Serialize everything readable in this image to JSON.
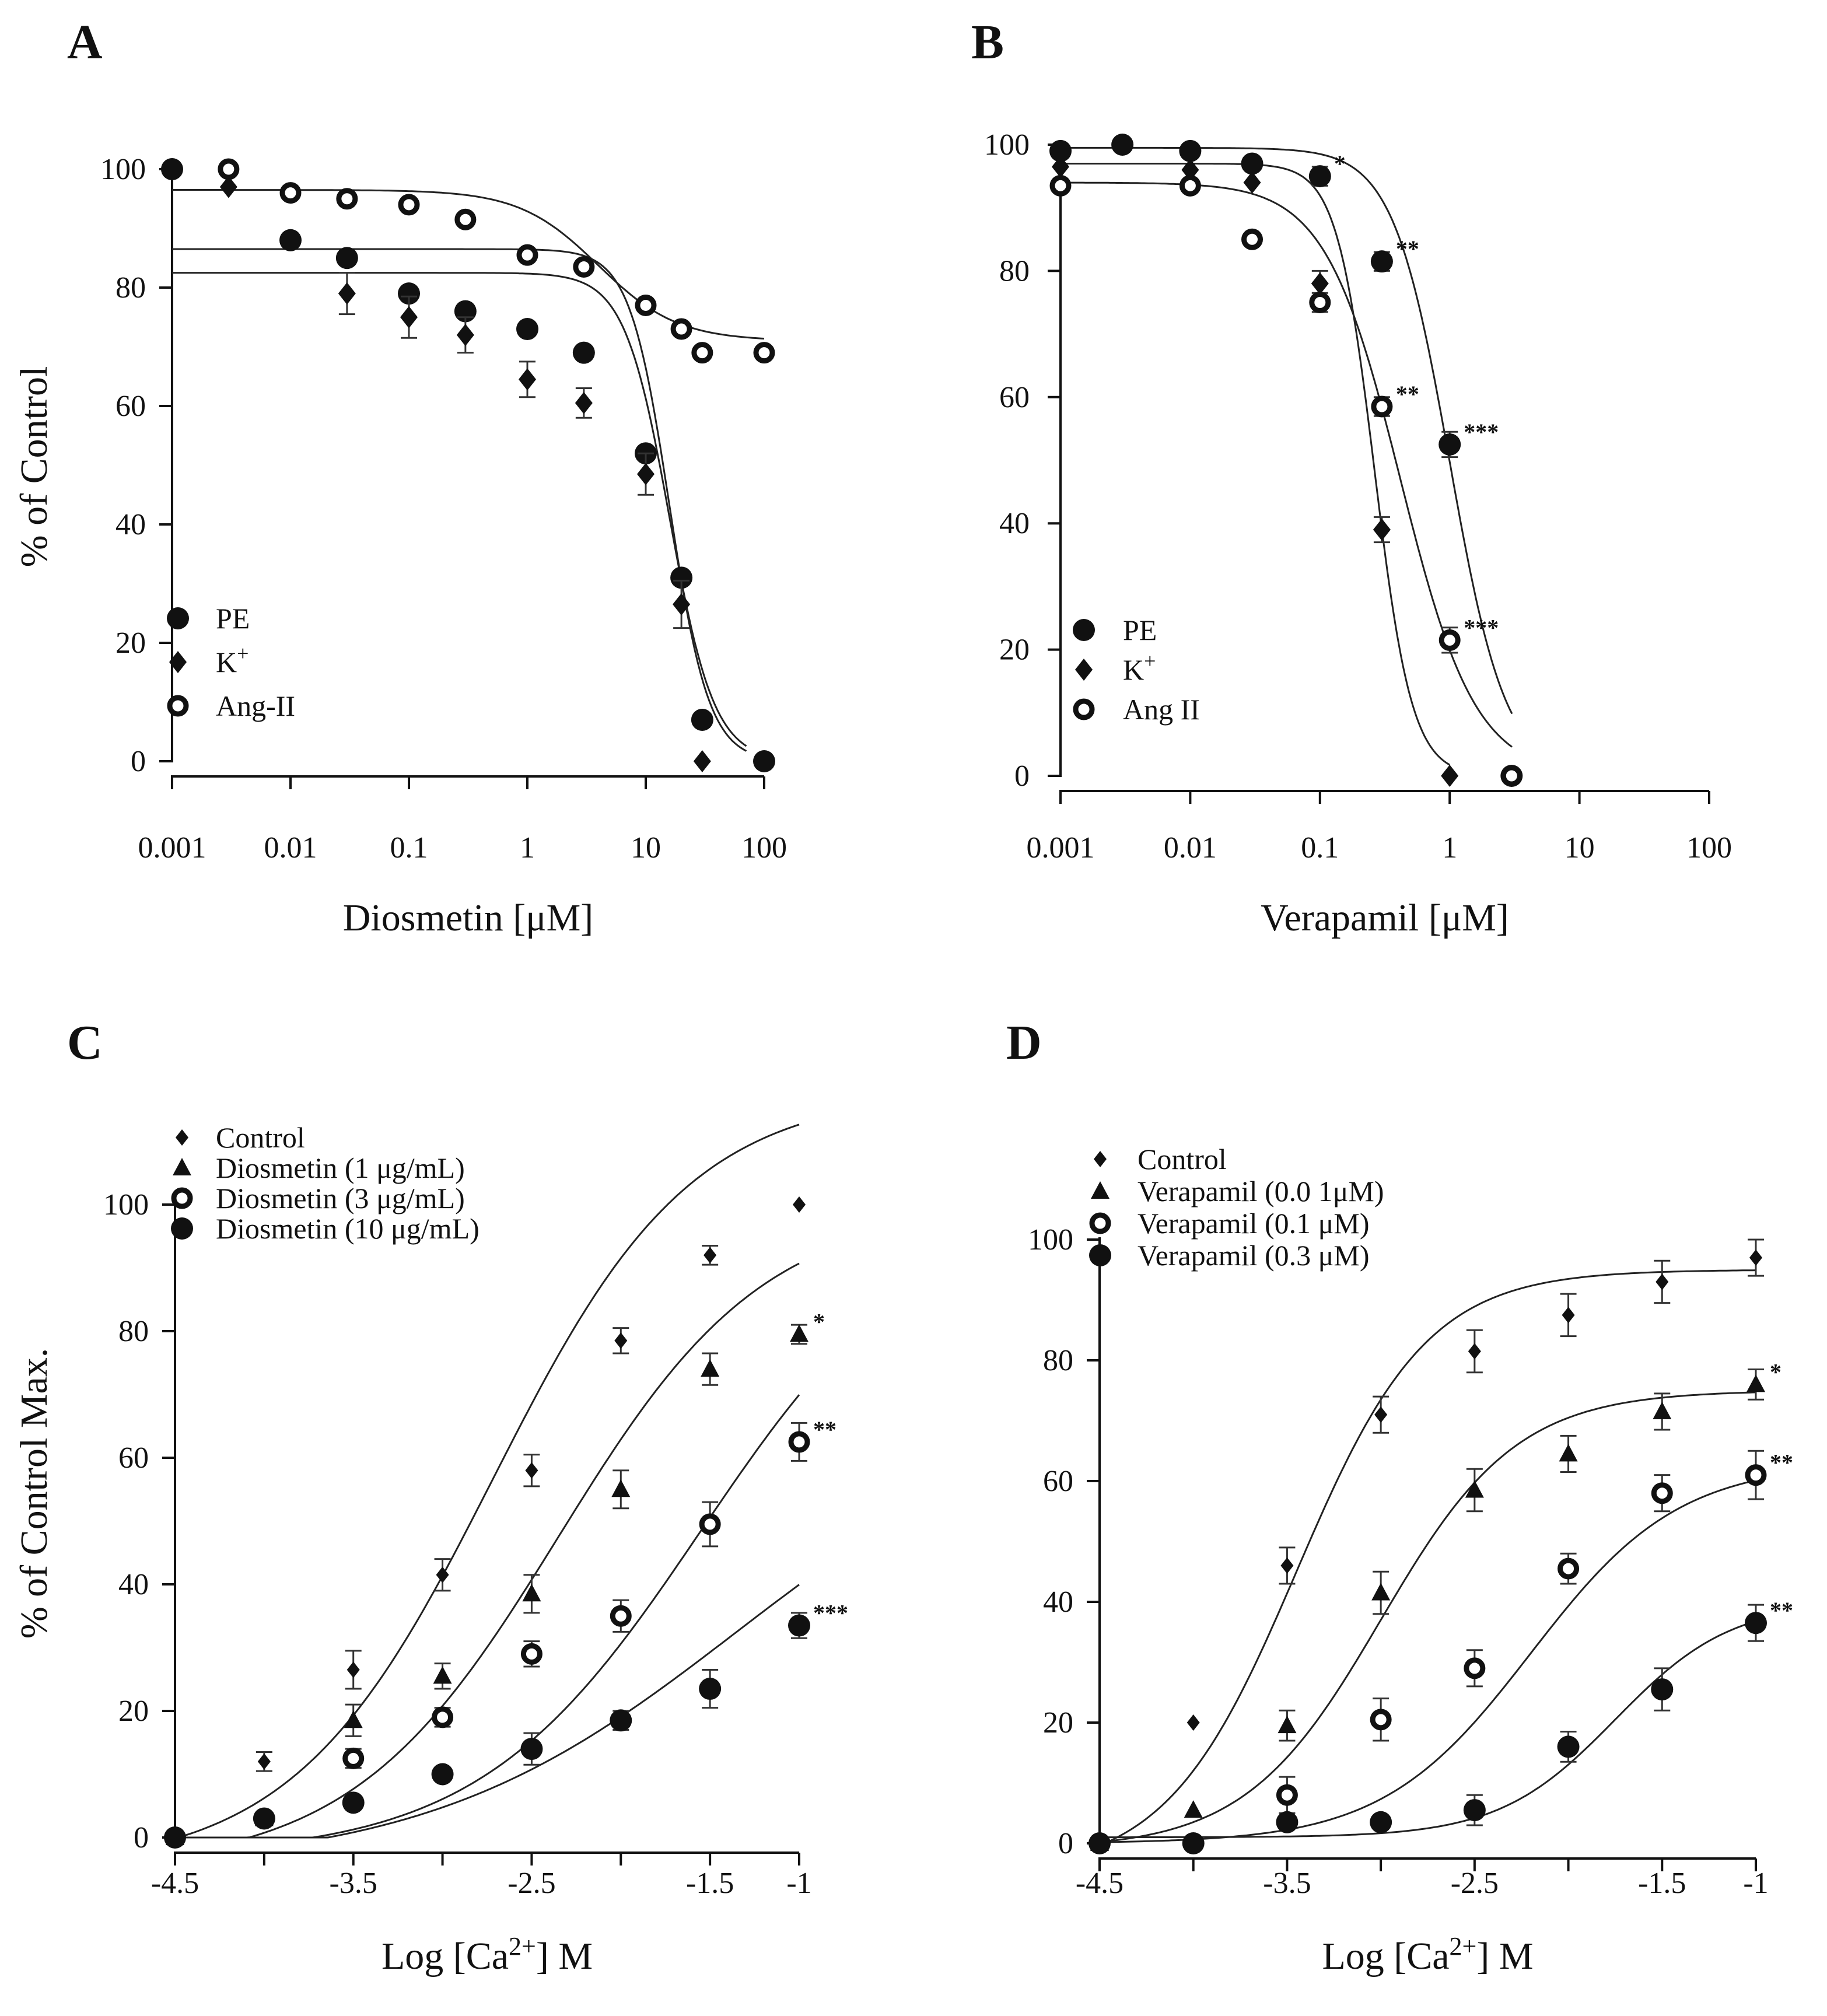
{
  "chart_data": [
    {
      "panel": "A",
      "type": "scatter",
      "xscale": "log",
      "xlabel": "Diosmetin [μM]",
      "ylabel": "% of Control",
      "xlim": [
        0.001,
        100
      ],
      "ylim": [
        0,
        100
      ],
      "xticks": [
        "0.001",
        "0.01",
        "0.1",
        "1",
        "10",
        "100"
      ],
      "yticks": [
        "0",
        "20",
        "40",
        "60",
        "80",
        "100"
      ],
      "legend_position": "bottom-left",
      "series": [
        {
          "name": "PE",
          "marker": "filled-circle",
          "x": [
            0.001,
            0.01,
            0.03,
            0.1,
            0.3,
            1,
            3,
            10,
            20,
            30,
            100
          ],
          "y": [
            100,
            88,
            85,
            79,
            76,
            73,
            69,
            52,
            31,
            7,
            0
          ],
          "err": [
            0,
            0,
            0,
            0,
            0,
            0,
            0,
            0,
            0,
            0,
            0
          ],
          "fit": {
            "top": 82.5,
            "bottom": 0,
            "logec50": 1.2,
            "hill": 2.3,
            "xmin": -3,
            "xmax": 1.85
          }
        },
        {
          "name": "K+",
          "marker": "filled-diamond",
          "x": [
            0.003,
            0.03,
            0.1,
            0.3,
            1,
            3,
            10,
            20,
            30
          ],
          "y": [
            97,
            79,
            75,
            72,
            64.5,
            60.5,
            48.5,
            26.5,
            0
          ],
          "err": [
            0,
            3.5,
            3.5,
            3.0,
            3.0,
            2.5,
            3.5,
            4.0,
            0
          ],
          "fit": {
            "top": 86.5,
            "bottom": 0,
            "logec50": 1.2,
            "hill": 2.6,
            "xmin": -3,
            "xmax": 1.85
          }
        },
        {
          "name": "Ang-II",
          "marker": "open-circle",
          "x": [
            0.003,
            0.01,
            0.03,
            0.1,
            0.3,
            1,
            3,
            10,
            20,
            30,
            100
          ],
          "y": [
            100,
            96,
            95,
            94,
            91.5,
            85.5,
            83.5,
            77,
            73,
            69,
            69
          ],
          "err": [
            0,
            0,
            0,
            0,
            0,
            0,
            0,
            0,
            0,
            0,
            0
          ],
          "fit": {
            "top": 96.5,
            "bottom": 71,
            "logec50": 0.6,
            "hill": 1.3,
            "xmin": -3,
            "xmax": 2
          }
        }
      ],
      "annotations": []
    },
    {
      "panel": "B",
      "type": "scatter",
      "xscale": "log",
      "xlabel": "Verapamil [μM]",
      "ylabel": "",
      "xlim": [
        0.001,
        100
      ],
      "ylim": [
        0,
        100
      ],
      "xticks": [
        "0.001",
        "0.01",
        "0.1",
        "1",
        "10",
        "100"
      ],
      "yticks": [
        "0",
        "20",
        "40",
        "60",
        "80",
        "100"
      ],
      "legend_position": "bottom-left",
      "series": [
        {
          "name": "PE",
          "marker": "filled-circle",
          "x": [
            0.001,
            0.003,
            0.01,
            0.03,
            0.1,
            0.3,
            1,
            3
          ],
          "y": [
            99,
            100,
            99,
            97,
            95,
            81.5,
            52.5,
            0
          ],
          "err": [
            0,
            0,
            0,
            0,
            1.5,
            1.5,
            2.0,
            0
          ],
          "fit": {
            "top": 99.5,
            "bottom": 0,
            "logec50": 0.0,
            "hill": 2.0,
            "xmin": -3,
            "xmax": 0.48
          }
        },
        {
          "name": "K+",
          "marker": "filled-diamond",
          "x": [
            0.001,
            0.01,
            0.03,
            0.1,
            0.3,
            1
          ],
          "y": [
            96.5,
            96,
            94,
            78,
            39,
            0
          ],
          "err": [
            0,
            0,
            0,
            2.0,
            2.0,
            0
          ],
          "fit": {
            "top": 97,
            "bottom": 0,
            "logec50": -0.58,
            "hill": 3.0,
            "xmin": -3,
            "xmax": 0.0
          }
        },
        {
          "name": "Ang II",
          "marker": "open-circle",
          "x": [
            0.001,
            0.01,
            0.03,
            0.1,
            0.3,
            1,
            3
          ],
          "y": [
            93.5,
            93.5,
            85,
            75,
            58.5,
            21.5,
            0
          ],
          "err": [
            0,
            0,
            0,
            1.5,
            1.5,
            2.0,
            0
          ],
          "fit": {
            "top": 94,
            "bottom": 0,
            "logec50": -0.38,
            "hill": 1.5,
            "xmin": -3,
            "xmax": 0.48
          }
        }
      ],
      "annotations": [
        {
          "x": 0.1,
          "y": 95,
          "text": "*"
        },
        {
          "x": 0.3,
          "y": 81.5,
          "text": "**"
        },
        {
          "x": 0.3,
          "y": 58.5,
          "text": "**"
        },
        {
          "x": 1,
          "y": 52.5,
          "text": "***"
        },
        {
          "x": 1,
          "y": 21.5,
          "text": "***"
        }
      ]
    },
    {
      "panel": "C",
      "type": "scatter",
      "xscale": "linear",
      "xlabel_parts": [
        "Log [Ca",
        "2+",
        "] M"
      ],
      "ylabel": "% of Control Max.",
      "xlim": [
        -4.5,
        -1
      ],
      "ylim": [
        0,
        100
      ],
      "xticks": [
        "-4.5",
        "-3.5",
        "-2.5",
        "-1.5",
        "-1"
      ],
      "xtick_values": [
        -4.5,
        -3.5,
        -2.5,
        -1.5,
        -1
      ],
      "yticks": [
        "0",
        "20",
        "40",
        "60",
        "80",
        "100"
      ],
      "legend_position": "top-left",
      "series": [
        {
          "name": "Control",
          "marker": "small-filled-diamond",
          "x": [
            -4.5,
            -4,
            -3.5,
            -3,
            -2.5,
            -2,
            -1.5,
            -1
          ],
          "y": [
            0,
            12,
            26.5,
            41.5,
            58,
            78.5,
            92,
            100
          ],
          "err": [
            0,
            1.5,
            3.0,
            2.5,
            2.5,
            2.0,
            1.5,
            0
          ],
          "fit": {
            "type": "logistic",
            "bottom": -5,
            "top": 118,
            "logec50": -2.72,
            "hill": 0.78
          }
        },
        {
          "name": "Diosmetin (1 μg/mL)",
          "marker": "filled-triangle",
          "x": [
            -4.5,
            -4,
            -3.5,
            -3,
            -2.5,
            -2,
            -1.5,
            -1
          ],
          "y": [
            0,
            3,
            18.5,
            25.5,
            38.5,
            55,
            74,
            79.5
          ],
          "err": [
            0,
            0,
            2.5,
            2.0,
            3.0,
            3.0,
            2.5,
            1.5
          ],
          "fit": {
            "type": "logistic",
            "bottom": -5,
            "top": 100,
            "logec50": -2.35,
            "hill": 0.75
          }
        },
        {
          "name": "Diosmetin (3 μg/mL)",
          "marker": "open-circle",
          "x": [
            -4.5,
            -4,
            -3.5,
            -3,
            -2.5,
            -2,
            -1.5,
            -1
          ],
          "y": [
            0,
            3,
            12.5,
            19,
            29,
            35,
            49.5,
            62.5
          ],
          "err": [
            0,
            0,
            1.5,
            1.5,
            2.0,
            2.5,
            3.5,
            3.0
          ],
          "fit": {
            "type": "logistic",
            "bottom": -3,
            "top": 100,
            "logec50": -1.55,
            "hill": 0.7
          }
        },
        {
          "name": "Diosmetin (10 μg/mL)",
          "marker": "filled-circle",
          "x": [
            -4.5,
            -4,
            -3.5,
            -3,
            -2.5,
            -2,
            -1.5,
            -1
          ],
          "y": [
            0,
            3,
            5.5,
            10,
            14,
            18.5,
            23.5,
            33.5
          ],
          "err": [
            0,
            0,
            0,
            0,
            2.5,
            1.5,
            3.0,
            2.0
          ],
          "fit": {
            "type": "logistic",
            "bottom": -5,
            "top": 70,
            "logec50": -1.35,
            "hill": 0.5
          }
        }
      ],
      "annotations": [
        {
          "x": -1,
          "y": 79.5,
          "text": "*"
        },
        {
          "x": -1,
          "y": 62.5,
          "text": "**"
        },
        {
          "x": -1,
          "y": 33.5,
          "text": "***"
        }
      ]
    },
    {
      "panel": "D",
      "type": "scatter",
      "xscale": "linear",
      "xlabel_parts": [
        "Log [Ca",
        "2+",
        "] M"
      ],
      "ylabel": "",
      "xlim": [
        -4.5,
        -1
      ],
      "ylim": [
        0,
        100
      ],
      "xticks": [
        "-4.5",
        "-3.5",
        "-2.5",
        "-1.5",
        "-1"
      ],
      "xtick_values": [
        -4.5,
        -3.5,
        -2.5,
        -1.5,
        -1
      ],
      "yticks": [
        "0",
        "20",
        "40",
        "60",
        "80",
        "100"
      ],
      "legend_position": "top-left",
      "series": [
        {
          "name": "Control",
          "marker": "small-filled-diamond",
          "x": [
            -4.5,
            -4,
            -3.5,
            -3,
            -2.5,
            -2,
            -1.5,
            -1
          ],
          "y": [
            0,
            20,
            46,
            71,
            81.5,
            87.5,
            93,
            97
          ],
          "err": [
            0,
            0,
            3.0,
            3.0,
            3.5,
            3.5,
            3.5,
            3.0
          ],
          "fit": {
            "type": "logistic",
            "bottom": -5,
            "top": 95,
            "logec50": -3.45,
            "hill": 1.25
          }
        },
        {
          "name": "Verapamil (0.0 1μM)",
          "marker": "filled-triangle",
          "x": [
            -4.5,
            -4,
            -3.5,
            -3,
            -2.5,
            -2,
            -1.5,
            -1
          ],
          "y": [
            0,
            5.5,
            19.5,
            41.5,
            58.5,
            64.5,
            71.5,
            76
          ],
          "err": [
            0,
            0,
            2.5,
            3.5,
            3.5,
            3.0,
            3.0,
            2.5
          ],
          "fit": {
            "type": "logistic",
            "bottom": -1,
            "top": 75,
            "logec50": -3.0,
            "hill": 1.2
          }
        },
        {
          "name": "Verapamil (0.1 μM)",
          "marker": "open-circle",
          "x": [
            -4.5,
            -4,
            -3.5,
            -3,
            -2.5,
            -2,
            -1.5,
            -1
          ],
          "y": [
            0,
            0,
            8,
            20.5,
            29,
            45.5,
            58,
            61
          ],
          "err": [
            0,
            0,
            3.0,
            3.5,
            3.0,
            2.5,
            3.0,
            4.0
          ],
          "fit": {
            "type": "logistic",
            "bottom": 0,
            "top": 63,
            "logec50": -2.2,
            "hill": 1.1
          }
        },
        {
          "name": "Verapamil (0.3 μM)",
          "marker": "filled-circle",
          "x": [
            -4.5,
            -4,
            -3.5,
            -3,
            -2.5,
            -2,
            -1.5,
            -1
          ],
          "y": [
            0,
            0,
            3.5,
            3.5,
            5.5,
            16,
            25.5,
            36.5
          ],
          "err": [
            0,
            0,
            0,
            0,
            2.5,
            2.5,
            3.5,
            3.0
          ],
          "fit": {
            "type": "logistic",
            "bottom": 1,
            "top": 40,
            "logec50": -1.75,
            "hill": 1.4
          }
        }
      ],
      "annotations": [
        {
          "x": -1,
          "y": 76,
          "text": "*"
        },
        {
          "x": -1,
          "y": 61,
          "text": "**"
        },
        {
          "x": -1,
          "y": 36.5,
          "text": "**"
        }
      ]
    }
  ]
}
